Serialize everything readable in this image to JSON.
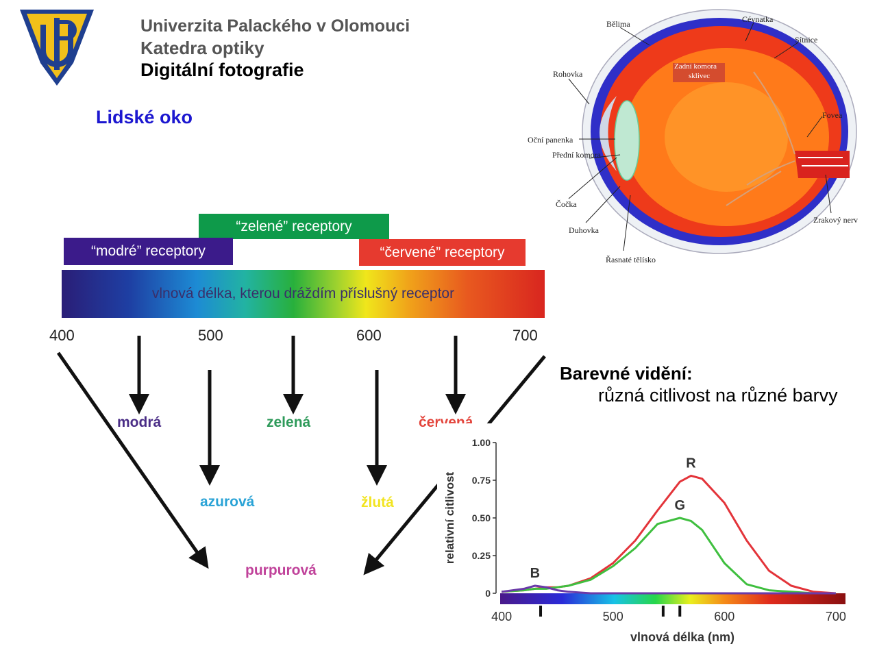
{
  "header": {
    "university": "Univerzita Palackého v Olomouci",
    "department": "Katedra optiky",
    "course": "Digitální fotografie"
  },
  "section_title": "Lidské oko",
  "receptor_diagram": {
    "blue_receptors": "“modré” receptory",
    "green_receptors": "“zelené” receptory",
    "red_receptors": "“červené” receptory",
    "spectrum_label": "vlnová délka, kterou dráždím příslušný receptor",
    "ticks": [
      "400",
      "500",
      "600",
      "700"
    ],
    "primary_colors": [
      {
        "name": "modrá",
        "color": "#4a2d86"
      },
      {
        "name": "zelená",
        "color": "#2e9a5a"
      },
      {
        "name": "červená",
        "color": "#e3453c"
      }
    ],
    "mixed_colors": [
      {
        "name": "azurová",
        "color": "#2aa3d6"
      },
      {
        "name": "žlutá",
        "color": "#f2e420"
      },
      {
        "name": "purpurová",
        "color": "#c0429a"
      }
    ]
  },
  "eye_labels": {
    "belima": "Bělima",
    "cevnatka": "Cévnatka",
    "sitnice": "Sítnice",
    "rohovka": "Rohovka",
    "zadni_komora": "Zadní komora",
    "sklivec": "sklivec",
    "fovea": "Fovea",
    "ocni_panenka": "Oční panenka",
    "predni_komora": "Přední komora",
    "cocka": "Čočka",
    "duhovka": "Duhovka",
    "zrakovy_nerv": "Zrakový nerv",
    "rasnate_telisko": "Řasnaté tělísko"
  },
  "color_vision": {
    "title": "Barevné vidění:",
    "subtitle": "různá citlivost na různé barvy"
  },
  "chart_data": {
    "type": "line",
    "xlabel": "vlnová délka (nm)",
    "ylabel": "relativní citlivost",
    "xlim": [
      395,
      705
    ],
    "ylim": [
      0,
      1.0
    ],
    "xticks": [
      "400",
      "500",
      "600",
      "700"
    ],
    "yticks": [
      "0",
      "0.25",
      "0.50",
      "0.75",
      "1.00"
    ],
    "x": [
      400,
      420,
      430,
      440,
      450,
      460,
      480,
      500,
      520,
      540,
      560,
      570,
      580,
      600,
      620,
      640,
      660,
      680,
      700
    ],
    "series": [
      {
        "name": "R",
        "color": "#e3343a",
        "values": [
          0.01,
          0.02,
          0.03,
          0.04,
          0.04,
          0.05,
          0.1,
          0.2,
          0.35,
          0.55,
          0.74,
          0.78,
          0.76,
          0.6,
          0.35,
          0.15,
          0.05,
          0.01,
          0.0
        ]
      },
      {
        "name": "G",
        "color": "#3fbf3f",
        "values": [
          0.01,
          0.02,
          0.03,
          0.03,
          0.04,
          0.05,
          0.09,
          0.18,
          0.3,
          0.46,
          0.5,
          0.48,
          0.42,
          0.2,
          0.06,
          0.02,
          0.01,
          0.0,
          0.0
        ]
      },
      {
        "name": "B",
        "color": "#6a3aa8",
        "values": [
          0.01,
          0.03,
          0.05,
          0.04,
          0.02,
          0.01,
          0.0,
          0.0,
          0.0,
          0.0,
          0.0,
          0.0,
          0.0,
          0.0,
          0.0,
          0.0,
          0.0,
          0.0,
          0.0
        ]
      }
    ],
    "markers_nm": [
      435,
      545,
      560
    ],
    "grid": false
  }
}
